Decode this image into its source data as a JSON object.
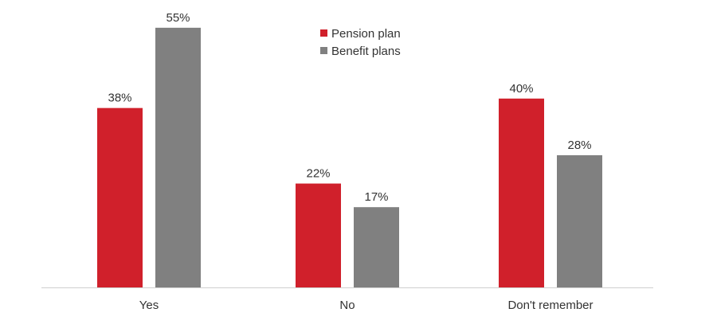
{
  "chart_data": {
    "type": "bar",
    "title": "",
    "xlabel": "",
    "ylabel": "",
    "categories": [
      "Yes",
      "No",
      "Don't remember"
    ],
    "series": [
      {
        "name": "Pension plan",
        "color": "#d0202b",
        "values": [
          38,
          22,
          40
        ],
        "labels": [
          "38%",
          "22%",
          "40%"
        ]
      },
      {
        "name": "Benefit plans",
        "color": "#808080",
        "values": [
          55,
          17,
          28
        ],
        "labels": [
          "55%",
          "17%",
          "28%"
        ]
      }
    ],
    "ylim": [
      0,
      60
    ],
    "grid": false,
    "legend_position": "top-center",
    "axis_color": "#d0d0d0"
  }
}
